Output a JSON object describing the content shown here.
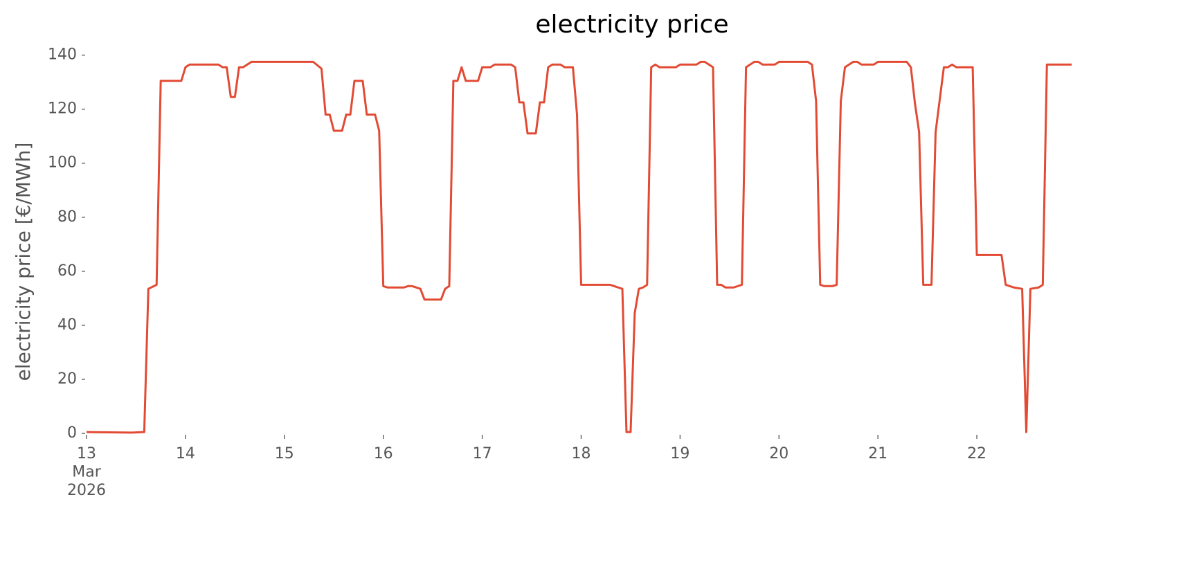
{
  "chart_data": {
    "type": "line",
    "title": "electricity price",
    "y_label": "electricity price [€/MWh]",
    "x": [
      13,
      13.4583,
      13.5833,
      13.625,
      13.7083,
      13.75,
      13.9583,
      14,
      14.0417,
      14.3333,
      14.375,
      14.4167,
      14.4583,
      14.5,
      14.5417,
      14.5833,
      14.6667,
      15.2917,
      15.375,
      15.4167,
      15.4583,
      15.5,
      15.5833,
      15.625,
      15.6667,
      15.7083,
      15.7917,
      15.8333,
      15.9167,
      15.9583,
      16,
      16.0417,
      16.2083,
      16.25,
      16.2917,
      16.375,
      16.4167,
      16.5833,
      16.625,
      16.6667,
      16.7083,
      16.75,
      16.7917,
      16.8333,
      16.9583,
      17,
      17.0833,
      17.125,
      17.2917,
      17.3333,
      17.375,
      17.4167,
      17.4583,
      17.5417,
      17.5833,
      17.625,
      17.6667,
      17.7083,
      17.7917,
      17.8333,
      17.9167,
      17.9583,
      18,
      18.2917,
      18.3333,
      18.375,
      18.4167,
      18.4583,
      18.5,
      18.5417,
      18.5833,
      18.625,
      18.6667,
      18.7083,
      18.75,
      18.7917,
      18.9583,
      19,
      19.1667,
      19.2083,
      19.25,
      19.3333,
      19.375,
      19.4167,
      19.4583,
      19.5417,
      19.625,
      19.6667,
      19.75,
      19.7917,
      19.8333,
      19.9583,
      20,
      20.2917,
      20.3333,
      20.375,
      20.4167,
      20.4583,
      20.5417,
      20.5833,
      20.625,
      20.6667,
      20.75,
      20.7917,
      20.8333,
      20.9583,
      21,
      21.2917,
      21.3333,
      21.375,
      21.4167,
      21.4583,
      21.5417,
      21.5833,
      21.6667,
      21.7083,
      21.75,
      21.7917,
      21.9583,
      22,
      22.25,
      22.2917,
      22.3333,
      22.375,
      22.4583,
      22.5,
      22.5417,
      22.625,
      22.6667,
      22.7083,
      22.9583
    ],
    "values": [
      0.5,
      0.3,
      0.5,
      53.5,
      55,
      130.5,
      130.5,
      135.5,
      136.5,
      136.5,
      135.5,
      135.5,
      124.5,
      124.5,
      135.5,
      135.5,
      137.5,
      137.5,
      135,
      118,
      118,
      112,
      112,
      118,
      118,
      130.5,
      130.5,
      118,
      118,
      112,
      54.5,
      54,
      54,
      54.5,
      54.5,
      53.5,
      49.5,
      49.5,
      53.5,
      54.5,
      130.5,
      130.5,
      135.5,
      130.5,
      130.5,
      135.5,
      135.5,
      136.5,
      136.5,
      135.5,
      122.5,
      122.5,
      111,
      111,
      122.5,
      122.5,
      135.5,
      136.5,
      136.5,
      135.5,
      135.5,
      118,
      55,
      55,
      54.5,
      54,
      53.5,
      0.5,
      0.5,
      44.5,
      53.5,
      54,
      55,
      135.5,
      136.5,
      135.5,
      135.5,
      136.5,
      136.5,
      137.5,
      137.5,
      135.5,
      55,
      55,
      54,
      54,
      55,
      135.5,
      137.5,
      137.5,
      136.5,
      136.5,
      137.5,
      137.5,
      136.5,
      123,
      55,
      54.5,
      54.5,
      55,
      123,
      135.5,
      137.5,
      137.5,
      136.5,
      136.5,
      137.5,
      137.5,
      135.5,
      122,
      111.5,
      55,
      55,
      111.5,
      135.5,
      135.5,
      136.5,
      135.5,
      135.5,
      66,
      66,
      55,
      54.5,
      54,
      53.5,
      0.5,
      53.5,
      54,
      55,
      136.5,
      136.5
    ],
    "color": "#e24a33",
    "xlim": [
      13,
      22.9583
    ],
    "xticks": [
      {
        "value": 13,
        "label": "13\nMar\n2026"
      },
      14,
      15,
      16,
      17,
      18,
      19,
      20,
      21,
      22
    ],
    "ylim": [
      0,
      144
    ],
    "yticks": [
      0,
      20,
      40,
      60,
      80,
      100,
      120,
      140
    ]
  }
}
